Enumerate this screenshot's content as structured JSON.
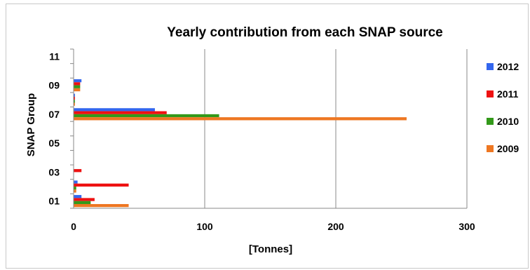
{
  "chart_data": {
    "type": "bar",
    "orientation": "horizontal",
    "title": "Yearly contribution from each SNAP source",
    "xlabel": "[Tonnes]",
    "ylabel": "SNAP Group",
    "xlim": [
      0,
      300
    ],
    "x_ticks": [
      "0",
      "100",
      "200",
      "300"
    ],
    "categories": [
      "01",
      "02",
      "03",
      "04",
      "05",
      "06",
      "07",
      "08",
      "09",
      "10",
      "11"
    ],
    "y_tick_labels": [
      "01",
      "03",
      "05",
      "07",
      "09",
      "11"
    ],
    "grid": "vertical",
    "legend_position": "right",
    "series": [
      {
        "name": "2012",
        "color": "#3366ee",
        "values": [
          6,
          3,
          0,
          0,
          0,
          0,
          62,
          1,
          6,
          0,
          0
        ]
      },
      {
        "name": "2011",
        "color": "#ee1111",
        "values": [
          16,
          42,
          6,
          0,
          0,
          0,
          71,
          1,
          5,
          0,
          0
        ]
      },
      {
        "name": "2010",
        "color": "#33991a",
        "values": [
          13,
          2,
          0,
          0,
          0,
          0,
          111,
          1,
          5,
          0,
          0
        ]
      },
      {
        "name": "2009",
        "color": "#ee7722",
        "values": [
          42,
          2,
          0,
          0,
          0,
          0,
          254,
          1,
          5,
          0,
          0
        ]
      }
    ]
  }
}
